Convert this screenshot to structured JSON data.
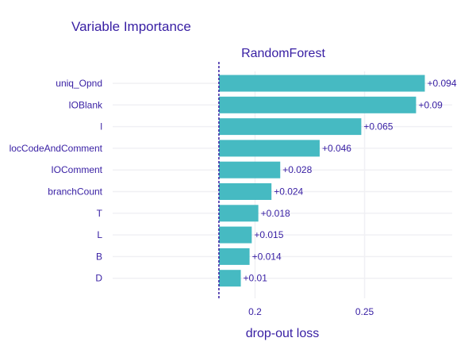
{
  "chart_data": {
    "type": "bar",
    "orientation": "horizontal",
    "title": "Variable Importance",
    "subtitle": "RandomForest",
    "xlabel": "drop-out loss",
    "baseline": 0.1835,
    "xlim": [
      0.135,
      0.29
    ],
    "xticks": [
      0.2,
      0.25
    ],
    "xtick_labels": [
      "0.2",
      "0.25"
    ],
    "bar_color": "#46bac2",
    "baseline_color": "#371ea3",
    "categories": [
      "uniq_Opnd",
      "IOBlank",
      "l",
      "locCodeAndComment",
      "IOComment",
      "branchCount",
      "T",
      "L",
      "B",
      "D"
    ],
    "values": [
      0.094,
      0.09,
      0.065,
      0.046,
      0.028,
      0.024,
      0.018,
      0.015,
      0.014,
      0.01
    ],
    "labels": [
      "+0.094",
      "+0.09",
      "+0.065",
      "+0.046",
      "+0.028",
      "+0.024",
      "+0.018",
      "+0.015",
      "+0.014",
      "+0.01"
    ]
  }
}
